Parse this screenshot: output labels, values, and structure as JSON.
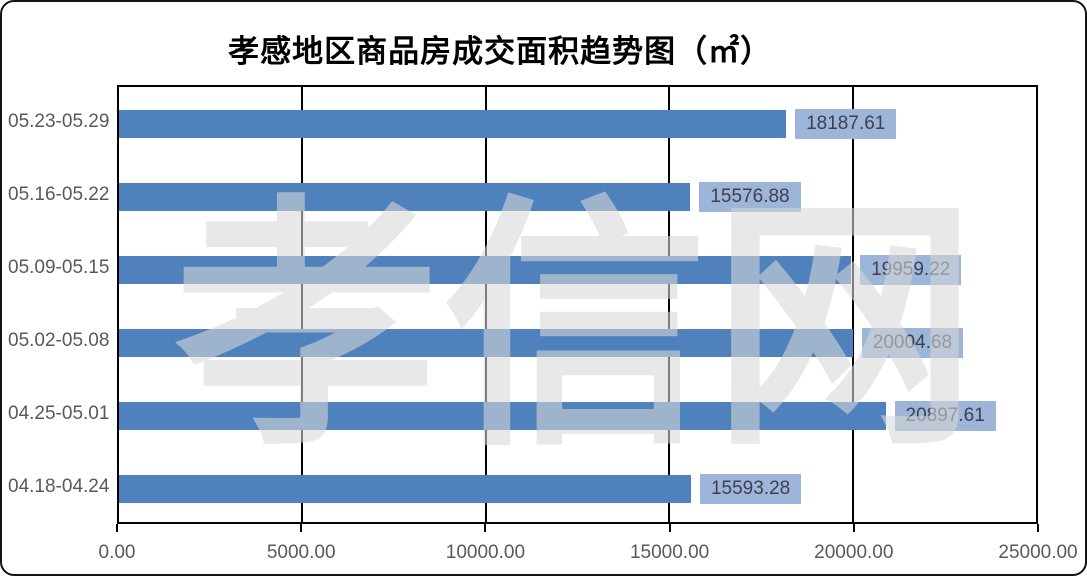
{
  "watermark": {
    "text": "孝信网"
  },
  "chart_data": {
    "type": "bar",
    "orientation": "horizontal",
    "title": "孝感地区商品房成交面积趋势图（㎡）",
    "categories": [
      "05.23-05.29",
      "05.16-05.22",
      "05.09-05.15",
      "05.02-05.08",
      "04.25-05.01",
      "04.18-04.24"
    ],
    "values": [
      18187.61,
      15576.88,
      19959.22,
      20004.68,
      20897.61,
      15593.28
    ],
    "value_labels": [
      "18187.61",
      "15576.88",
      "19959.22",
      "20004.68",
      "20897.61",
      "15593.28"
    ],
    "xlim": [
      0,
      25000
    ],
    "xticks": [
      0,
      5000,
      10000,
      15000,
      20000,
      25000
    ],
    "xtick_labels": [
      "0.00",
      "5000.00",
      "10000.00",
      "15000.00",
      "20000.00",
      "25000.00"
    ],
    "grid": true,
    "legend": false,
    "bar_color": "#4F81BD",
    "label_bg_color": "#9CB5D9",
    "label_text_color": "#3F3F4E",
    "axis_text_color": "#595959"
  }
}
